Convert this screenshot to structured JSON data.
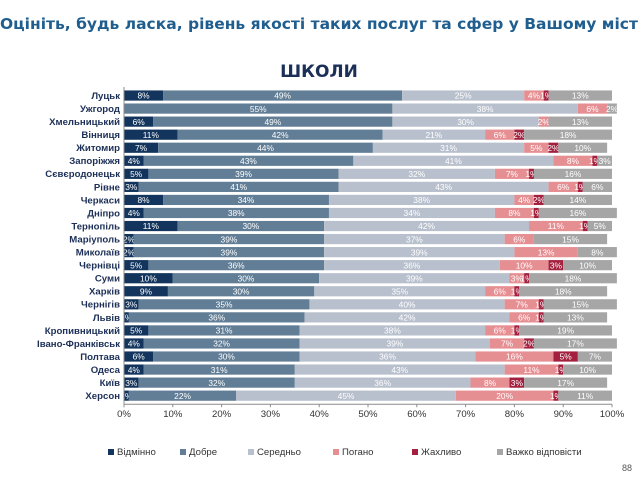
{
  "header": {
    "title": "Оцініть, будь ласка, рівень якості таких послуг та сфер у Вашому місті",
    "subtitle": "ШКОЛИ"
  },
  "page_number": "88",
  "chart_data": {
    "type": "bar",
    "orientation": "horizontal",
    "stacked": true,
    "title": "ШКОЛИ",
    "xlabel": "",
    "ylabel": "",
    "xlim": [
      0,
      100
    ],
    "x_ticks": [
      "0%",
      "10%",
      "20%",
      "30%",
      "40%",
      "50%",
      "60%",
      "70%",
      "80%",
      "90%",
      "100%"
    ],
    "grid": false,
    "legend_position": "bottom",
    "categories": [
      "Луцьк",
      "Ужгород",
      "Хмельницький",
      "Вінниця",
      "Житомир",
      "Запоріжжя",
      "Сєвєродонецьк",
      "Рівне",
      "Черкаси",
      "Дніпро",
      "Тернопіль",
      "Маріуполь",
      "Миколаїв",
      "Чернівці",
      "Суми",
      "Харків",
      "Чернігів",
      "Львів",
      "Кропивницький",
      "Івано-Франківськ",
      "Полтава",
      "Одеса",
      "Київ",
      "Херсон"
    ],
    "series": [
      {
        "name": "Відмінно",
        "color": "#13355d",
        "label_color": "#ffffff",
        "values": [
          8,
          0,
          6,
          11,
          7,
          4,
          5,
          3,
          8,
          4,
          11,
          2,
          2,
          5,
          10,
          9,
          3,
          1,
          5,
          4,
          6,
          4,
          3,
          1
        ]
      },
      {
        "name": "Добре",
        "color": "#627e96",
        "label_color": "#ffffff",
        "values": [
          49,
          55,
          49,
          42,
          44,
          43,
          39,
          41,
          34,
          38,
          30,
          39,
          39,
          36,
          30,
          30,
          35,
          36,
          31,
          32,
          30,
          31,
          32,
          22
        ]
      },
      {
        "name": "Середньо",
        "color": "#b9c0cd",
        "label_color": "#ffffff",
        "values": [
          25,
          38,
          30,
          21,
          31,
          41,
          32,
          43,
          38,
          34,
          42,
          37,
          39,
          36,
          39,
          35,
          40,
          42,
          38,
          39,
          36,
          43,
          36,
          45
        ]
      },
      {
        "name": "Погано",
        "color": "#e68f93",
        "label_color": "#ffffff",
        "values": [
          4,
          6,
          2,
          6,
          5,
          8,
          7,
          6,
          4,
          8,
          11,
          6,
          13,
          10,
          3,
          6,
          7,
          6,
          6,
          7,
          16,
          11,
          8,
          20
        ]
      },
      {
        "name": "Жахливо",
        "color": "#a3203f",
        "label_color": "#ffffff",
        "values": [
          1,
          0,
          0,
          2,
          2,
          1,
          1,
          1,
          2,
          1,
          1,
          0,
          0,
          3,
          1,
          1,
          1,
          1,
          1,
          2,
          5,
          1,
          3,
          1
        ]
      },
      {
        "name": "Важко відповісти",
        "color": "#a6a6a6",
        "label_color": "#ffffff",
        "values": [
          13,
          2,
          13,
          18,
          10,
          3,
          16,
          6,
          14,
          16,
          5,
          15,
          8,
          10,
          18,
          18,
          15,
          13,
          19,
          17,
          7,
          10,
          17,
          11
        ]
      }
    ]
  }
}
